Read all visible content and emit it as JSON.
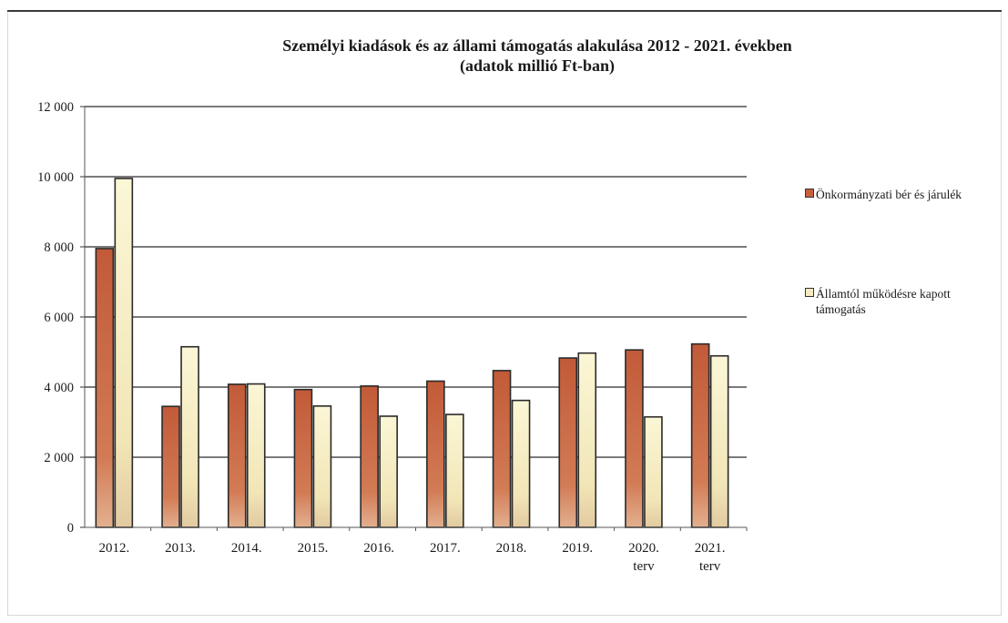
{
  "chart_data": {
    "type": "bar",
    "title": "Személyi kiadások és az állami támogatás alakulása 2012 - 2021. években",
    "subtitle": "(adatok millió Ft-ban)",
    "categories": [
      [
        "2012."
      ],
      [
        "2013."
      ],
      [
        "2014."
      ],
      [
        "2015."
      ],
      [
        "2016."
      ],
      [
        "2017."
      ],
      [
        "2018."
      ],
      [
        "2019."
      ],
      [
        "2020.",
        "terv"
      ],
      [
        "2021.",
        "terv"
      ]
    ],
    "series": [
      {
        "name": "Önkormányzati bér és járulék",
        "color": "#c8603e",
        "values": [
          7950,
          3450,
          4080,
          3930,
          4030,
          4170,
          4470,
          4830,
          5060,
          5230
        ]
      },
      {
        "name": "Államtól működésre kapott támogatás",
        "color": "#f4ebc0",
        "values": [
          9950,
          5150,
          4090,
          3460,
          3170,
          3220,
          3620,
          4970,
          3150,
          4890
        ]
      }
    ],
    "ylim": [
      0,
      12000
    ],
    "yticks": [
      "0",
      "2 000",
      "4 000",
      "6 000",
      "8 000",
      "10 000",
      "12 000"
    ],
    "grid": true,
    "legend_position": "right"
  },
  "legend": {
    "item1": "Önkormányzati bér és járulék",
    "item2_line1": "Államtól működésre kapott",
    "item2_line2": "támogatás"
  }
}
